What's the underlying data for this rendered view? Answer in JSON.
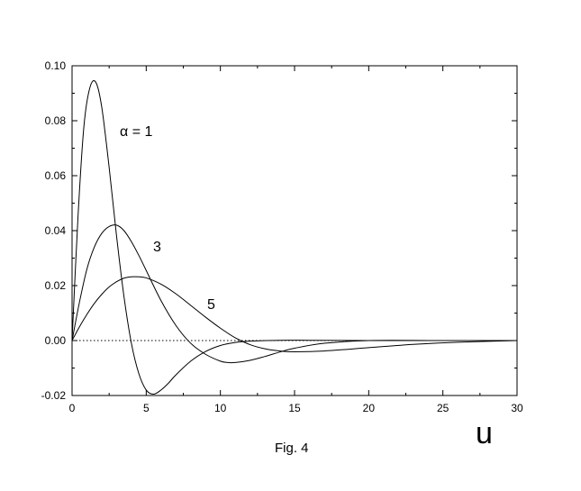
{
  "chart_data": {
    "type": "line",
    "title": "",
    "xlabel": "u",
    "ylabel": "",
    "caption": "Fig. 4",
    "xlim": [
      0,
      30
    ],
    "ylim": [
      -0.02,
      0.1
    ],
    "xticks": [
      0,
      5,
      10,
      15,
      20,
      25,
      30
    ],
    "xtick_labels": [
      "0",
      "5",
      "10",
      "15",
      "20",
      "25",
      "30"
    ],
    "yticks": [
      -0.02,
      0.0,
      0.02,
      0.04,
      0.06,
      0.08,
      0.1
    ],
    "ytick_labels": [
      "-0.02",
      "0.00",
      "0.02",
      "0.04",
      "0.06",
      "0.08",
      "0.10"
    ],
    "grid": false,
    "legend": "none",
    "zero_line": {
      "y": 0,
      "style": "dotted"
    },
    "series": [
      {
        "label": "α = 1",
        "x": [
          0,
          0.4,
          0.8,
          1.2,
          1.6,
          2.0,
          2.5,
          3.0,
          3.5,
          4.0,
          4.5,
          5.0,
          5.5,
          6.0,
          6.5,
          7.0,
          8.0,
          9.0,
          10.0,
          11.0,
          12.0,
          14.0,
          16.0,
          20.0,
          25.0,
          30.0
        ],
        "values": [
          0,
          0.045,
          0.078,
          0.092,
          0.094,
          0.085,
          0.063,
          0.038,
          0.016,
          -0.001,
          -0.012,
          -0.018,
          -0.0195,
          -0.018,
          -0.0155,
          -0.0125,
          -0.0075,
          -0.004,
          -0.0018,
          -0.0007,
          -0.0002,
          0.0001,
          0.0001,
          0.0,
          0.0,
          0.0
        ]
      },
      {
        "label": "3",
        "x": [
          0,
          0.5,
          1.0,
          1.5,
          2.0,
          2.5,
          3.0,
          3.5,
          4.0,
          4.5,
          5.0,
          6.0,
          7.0,
          8.0,
          9.0,
          10.0,
          10.5,
          11.0,
          12.0,
          13.0,
          14.0,
          15.0,
          17.0,
          20.0,
          25.0,
          30.0
        ],
        "values": [
          0,
          0.014,
          0.026,
          0.034,
          0.039,
          0.0415,
          0.042,
          0.04,
          0.036,
          0.031,
          0.0255,
          0.0145,
          0.0055,
          -0.001,
          -0.005,
          -0.0075,
          -0.008,
          -0.008,
          -0.0072,
          -0.0058,
          -0.0042,
          -0.0028,
          -0.001,
          0.0,
          0.0,
          0.0
        ]
      },
      {
        "label": "5",
        "x": [
          0,
          0.5,
          1.0,
          1.5,
          2.0,
          2.5,
          3.0,
          3.5,
          4.0,
          4.5,
          5.0,
          6.0,
          7.0,
          8.0,
          9.0,
          10.0,
          11.0,
          12.0,
          13.0,
          14.0,
          15.0,
          17.0,
          20.0,
          23.0,
          26.0,
          30.0
        ],
        "values": [
          0,
          0.005,
          0.0095,
          0.0135,
          0.0168,
          0.0195,
          0.0214,
          0.0227,
          0.0232,
          0.0232,
          0.0228,
          0.0205,
          0.017,
          0.0128,
          0.0085,
          0.0045,
          0.001,
          -0.0015,
          -0.003,
          -0.0038,
          -0.0041,
          -0.0038,
          -0.0026,
          -0.0014,
          -0.0006,
          0.0
        ]
      }
    ]
  }
}
